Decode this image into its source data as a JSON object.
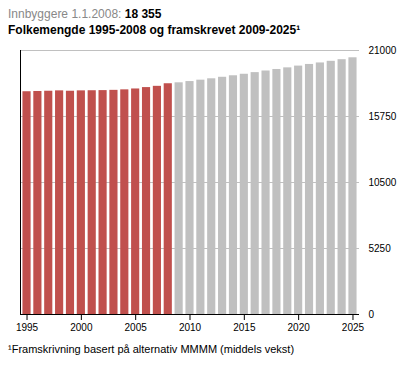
{
  "chart_data": {
    "type": "bar",
    "title": "Innbyggere 1.1.2008: 18 355",
    "subtitle": "Folkemengde 1995-2008 og framskrevet 2009-2025¹",
    "annotations": [
      "¹Framskrivning basert på alternativ MMMM (middels vekst)"
    ],
    "x": [
      1995,
      1996,
      1997,
      1998,
      1999,
      2000,
      2001,
      2002,
      2003,
      2004,
      2005,
      2006,
      2007,
      2008,
      2009,
      2010,
      2011,
      2012,
      2013,
      2014,
      2015,
      2016,
      2017,
      2018,
      2019,
      2020,
      2021,
      2022,
      2023,
      2024,
      2025
    ],
    "series": [
      {
        "color": "#C0504D",
        "values": [
          17720,
          17740,
          17760,
          17790,
          17760,
          17790,
          17800,
          17810,
          17830,
          17870,
          17940,
          18050,
          18150,
          18355,
          null,
          null,
          null,
          null,
          null,
          null,
          null,
          null,
          null,
          null,
          null,
          null,
          null,
          null,
          null,
          null,
          null
        ]
      },
      {
        "color": "#C0C0C0",
        "values": [
          null,
          null,
          null,
          null,
          null,
          null,
          null,
          null,
          null,
          null,
          null,
          null,
          null,
          null,
          18430,
          18530,
          18640,
          18750,
          18870,
          18990,
          19110,
          19240,
          19370,
          19490,
          19620,
          19760,
          19890,
          20010,
          20140,
          20270,
          20420
        ]
      }
    ],
    "xlim": [
      1994.4,
      2025.6
    ],
    "xticks": [
      1995,
      2000,
      2005,
      2010,
      2015,
      2020,
      2025
    ],
    "ylim": [
      0,
      21000
    ],
    "yticks": [
      0,
      5250,
      10500,
      15750,
      21000
    ],
    "grid": true
  }
}
